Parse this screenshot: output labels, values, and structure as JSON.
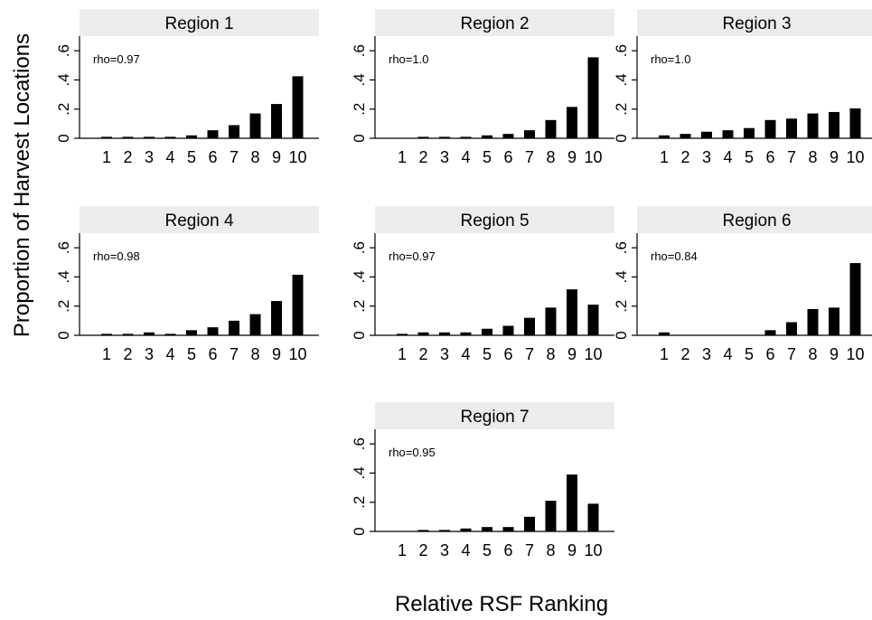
{
  "figure": {
    "ylabel": "Proportion of Harvest Locations",
    "xlabel": "Relative RSF Ranking"
  },
  "chart_data": [
    {
      "type": "bar",
      "title": "Region 1",
      "annotation": "rho=0.97",
      "categories": [
        "1",
        "2",
        "3",
        "4",
        "5",
        "6",
        "7",
        "8",
        "9",
        "10"
      ],
      "values": [
        0.01,
        0.01,
        0.01,
        0.01,
        0.02,
        0.055,
        0.09,
        0.17,
        0.235,
        0.425
      ],
      "ylim": [
        0,
        0.7
      ],
      "yticks": [
        "0",
        ".2",
        ".4",
        ".6"
      ]
    },
    {
      "type": "bar",
      "title": "Region 2",
      "annotation": "rho=1.0",
      "categories": [
        "1",
        "2",
        "3",
        "4",
        "5",
        "6",
        "7",
        "8",
        "9",
        "10"
      ],
      "values": [
        0,
        0.01,
        0.01,
        0.01,
        0.02,
        0.03,
        0.055,
        0.125,
        0.215,
        0.555
      ],
      "ylim": [
        0,
        0.7
      ],
      "yticks": [
        "0",
        ".2",
        ".4",
        ".6"
      ]
    },
    {
      "type": "bar",
      "title": "Region 3",
      "annotation": "rho=1.0",
      "categories": [
        "1",
        "2",
        "3",
        "4",
        "5",
        "6",
        "7",
        "8",
        "9",
        "10"
      ],
      "values": [
        0.02,
        0.03,
        0.045,
        0.055,
        0.07,
        0.125,
        0.135,
        0.17,
        0.18,
        0.205
      ],
      "ylim": [
        0,
        0.7
      ],
      "yticks": [
        "0",
        ".2",
        ".4",
        ".6"
      ]
    },
    {
      "type": "bar",
      "title": "Region 4",
      "annotation": "rho=0.98",
      "categories": [
        "1",
        "2",
        "3",
        "4",
        "5",
        "6",
        "7",
        "8",
        "9",
        "10"
      ],
      "values": [
        0.01,
        0.01,
        0.02,
        0.01,
        0.035,
        0.055,
        0.1,
        0.145,
        0.235,
        0.415
      ],
      "ylim": [
        0,
        0.7
      ],
      "yticks": [
        "0",
        ".2",
        ".4",
        ".6"
      ]
    },
    {
      "type": "bar",
      "title": "Region 5",
      "annotation": "rho=0.97",
      "categories": [
        "1",
        "2",
        "3",
        "4",
        "5",
        "6",
        "7",
        "8",
        "9",
        "10"
      ],
      "values": [
        0.01,
        0.02,
        0.02,
        0.02,
        0.045,
        0.065,
        0.12,
        0.19,
        0.315,
        0.21
      ],
      "ylim": [
        0,
        0.7
      ],
      "yticks": [
        "0",
        ".2",
        ".4",
        ".6"
      ]
    },
    {
      "type": "bar",
      "title": "Region 6",
      "annotation": "rho=0.84",
      "categories": [
        "1",
        "2",
        "3",
        "4",
        "5",
        "6",
        "7",
        "8",
        "9",
        "10"
      ],
      "values": [
        0.02,
        0,
        0,
        0,
        0,
        0.035,
        0.09,
        0.18,
        0.19,
        0.495
      ],
      "ylim": [
        0,
        0.7
      ],
      "yticks": [
        "0",
        ".2",
        ".4",
        ".6"
      ]
    },
    {
      "type": "bar",
      "title": "Region 7",
      "annotation": "rho=0.95",
      "categories": [
        "1",
        "2",
        "3",
        "4",
        "5",
        "6",
        "7",
        "8",
        "9",
        "10"
      ],
      "values": [
        0,
        0.01,
        0.01,
        0.02,
        0.03,
        0.03,
        0.1,
        0.21,
        0.39,
        0.19
      ],
      "ylim": [
        0,
        0.7
      ],
      "yticks": [
        "0",
        ".2",
        ".4",
        ".6"
      ]
    }
  ]
}
